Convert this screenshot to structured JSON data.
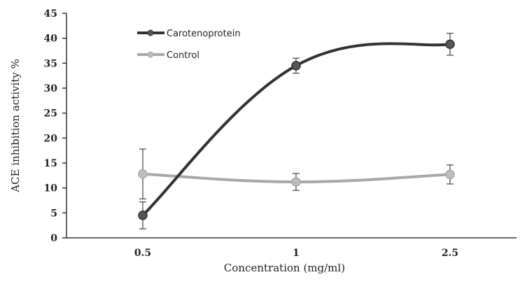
{
  "chart_data": {
    "type": "line",
    "title": "",
    "xlabel": "Concentration (mg/ml)",
    "ylabel": "ACE inhibition activity %",
    "categories": [
      "0.5",
      "1",
      "2.5"
    ],
    "ylim": [
      0,
      45
    ],
    "yticks": [
      0,
      5,
      10,
      15,
      20,
      25,
      30,
      35,
      40,
      45
    ],
    "grid": false,
    "legend_position": "top-left",
    "series": [
      {
        "name": "Carotenoprotein",
        "values": [
          4.5,
          34.5,
          38.8
        ],
        "errors": [
          2.7,
          1.5,
          2.2
        ],
        "color": "#333333",
        "marker_color": "#555555"
      },
      {
        "name": "Control",
        "values": [
          12.8,
          11.2,
          12.7
        ],
        "errors": [
          5.0,
          1.7,
          1.9
        ],
        "color": "#a8a8a8",
        "marker_color": "#bdbdbd"
      }
    ]
  }
}
